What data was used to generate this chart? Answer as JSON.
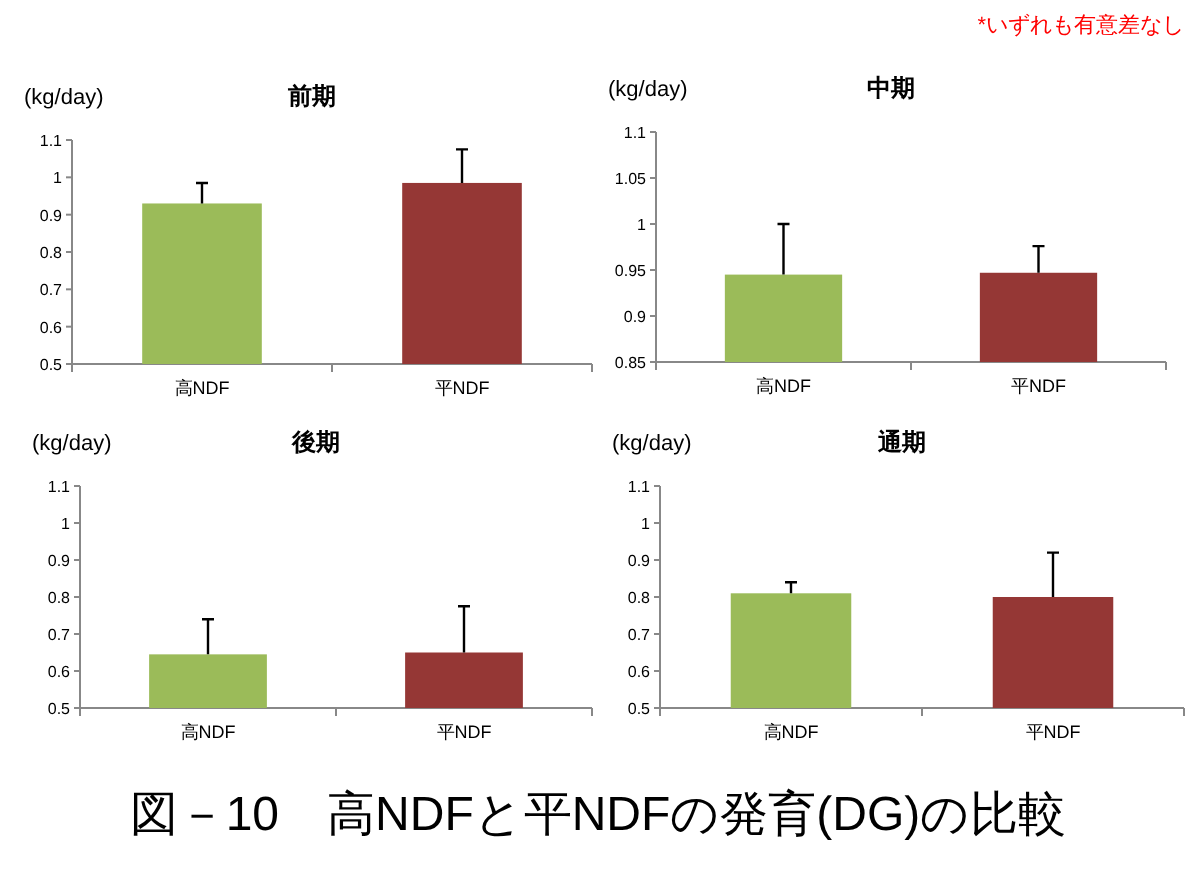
{
  "chart_data": [
    {
      "type": "bar",
      "title": "前期",
      "ylabel": "(kg/day)",
      "categories": [
        "高NDF",
        "平NDF"
      ],
      "values": [
        0.93,
        0.985
      ],
      "colors": [
        "#9bbb59",
        "#953735"
      ],
      "errors": [
        [
          0.93,
          0.985
        ],
        [
          0.985,
          1.075
        ]
      ],
      "ylim": [
        0.5,
        1.1
      ],
      "yticks": [
        0.5,
        0.6,
        0.7,
        0.8,
        0.9,
        1,
        1.1
      ]
    },
    {
      "type": "bar",
      "title": "中期",
      "ylabel": "(kg/day)",
      "categories": [
        "高NDF",
        "平NDF"
      ],
      "values": [
        0.945,
        0.947
      ],
      "colors": [
        "#9bbb59",
        "#953735"
      ],
      "errors": [
        [
          0.945,
          1.0
        ],
        [
          0.947,
          0.976
        ]
      ],
      "ylim": [
        0.85,
        1.1
      ],
      "yticks": [
        0.85,
        0.9,
        0.95,
        1,
        1.05,
        1.1
      ],
      "annotations": [
        "*いずれも有意差なし"
      ]
    },
    {
      "type": "bar",
      "title": "後期",
      "ylabel": "(kg/day)",
      "categories": [
        "高NDF",
        "平NDF"
      ],
      "values": [
        0.645,
        0.65
      ],
      "colors": [
        "#9bbb59",
        "#953735"
      ],
      "errors": [
        [
          0.645,
          0.74
        ],
        [
          0.65,
          0.775
        ]
      ],
      "ylim": [
        0.5,
        1.1
      ],
      "yticks": [
        0.5,
        0.6,
        0.7,
        0.8,
        0.9,
        1,
        1.1
      ]
    },
    {
      "type": "bar",
      "title": "通期",
      "ylabel": "(kg/day)",
      "categories": [
        "高NDF",
        "平NDF"
      ],
      "values": [
        0.81,
        0.8
      ],
      "colors": [
        "#9bbb59",
        "#953735"
      ],
      "errors": [
        [
          0.81,
          0.84
        ],
        [
          0.8,
          0.92
        ]
      ],
      "ylim": [
        0.5,
        1.1
      ],
      "yticks": [
        0.5,
        0.6,
        0.7,
        0.8,
        0.9,
        1,
        1.1
      ],
      "annotations": [
        "図－10　高NDFと平NDFの発育(DG)の比較"
      ]
    }
  ]
}
